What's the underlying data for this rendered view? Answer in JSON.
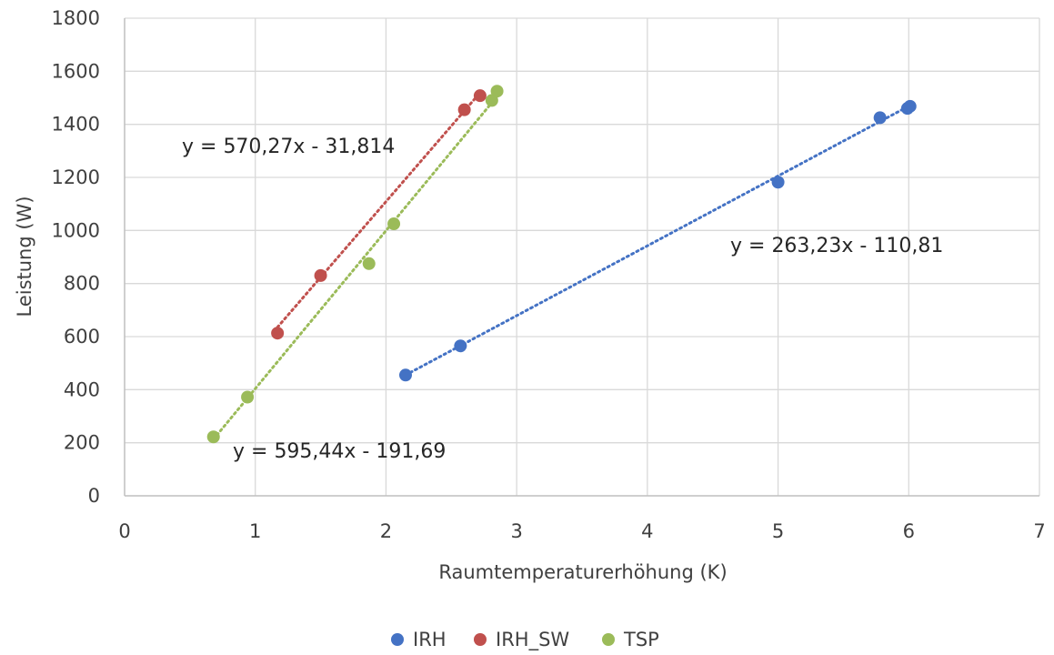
{
  "chart_data": {
    "type": "scatter",
    "title": "",
    "xlabel": "Raumtemperaturerhöhung (K)",
    "ylabel": "Leistung (W)",
    "xlim": [
      0,
      7
    ],
    "ylim": [
      0,
      1800
    ],
    "x_ticks": [
      0,
      1,
      2,
      3,
      4,
      5,
      6,
      7
    ],
    "y_ticks": [
      0,
      200,
      400,
      600,
      800,
      1000,
      1200,
      1400,
      1600,
      1800
    ],
    "grid": true,
    "legend_position": "bottom",
    "series": [
      {
        "name": "IRH",
        "color": "#4472c4",
        "x": [
          2.15,
          2.57,
          5.0,
          5.78,
          5.99,
          6.01
        ],
        "y": [
          455,
          565,
          1182,
          1425,
          1460,
          1468
        ],
        "trendline": {
          "slope": 263.23,
          "intercept": -110.81,
          "label": "y = 263,23x - 110,81"
        }
      },
      {
        "name": "IRH_SW",
        "color": "#c0504d",
        "x": [
          1.17,
          1.5,
          2.6,
          2.72
        ],
        "y": [
          613,
          830,
          1455,
          1508
        ],
        "trendline": {
          "slope": 570.27,
          "intercept": -31.814,
          "label": "y = 570,27x - 31,814"
        }
      },
      {
        "name": "TSP",
        "color": "#9bbb59",
        "x": [
          0.68,
          0.94,
          1.87,
          2.06,
          2.81,
          2.85
        ],
        "y": [
          222,
          372,
          875,
          1025,
          1490,
          1525
        ],
        "trendline": {
          "slope": 595.44,
          "intercept": -191.69,
          "label": "y = 595,44x - 191,69"
        }
      }
    ]
  }
}
